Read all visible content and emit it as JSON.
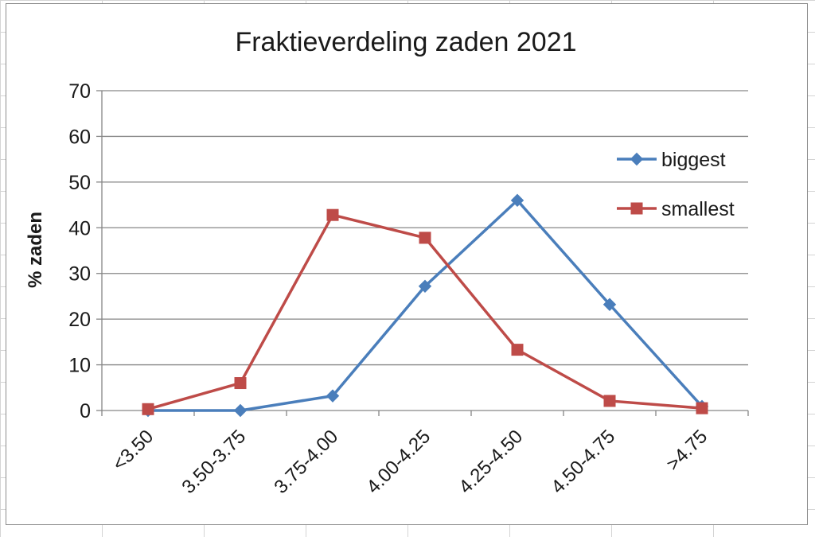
{
  "chart_data": {
    "type": "line",
    "title": "Fraktieverdeling zaden 2021",
    "xlabel": "",
    "ylabel": "% zaden",
    "categories": [
      "<3.50",
      "3.50-3.75",
      "3.75-4.00",
      "4.00-4.25",
      "4.25-4.50",
      "4.50-4.75",
      ">4.75"
    ],
    "ylim": [
      0,
      70
    ],
    "yticks": [
      0,
      10,
      20,
      30,
      40,
      50,
      60,
      70
    ],
    "grid": true,
    "legend_position": "right",
    "series": [
      {
        "name": "biggest",
        "color": "#4a7ebb",
        "marker": "diamond",
        "values": [
          0,
          0,
          3.2,
          27.2,
          46,
          23.2,
          0.9
        ]
      },
      {
        "name": "smallest",
        "color": "#be4b48",
        "marker": "square",
        "values": [
          0.3,
          6,
          42.8,
          37.8,
          13.3,
          2.1,
          0.5
        ]
      }
    ]
  }
}
